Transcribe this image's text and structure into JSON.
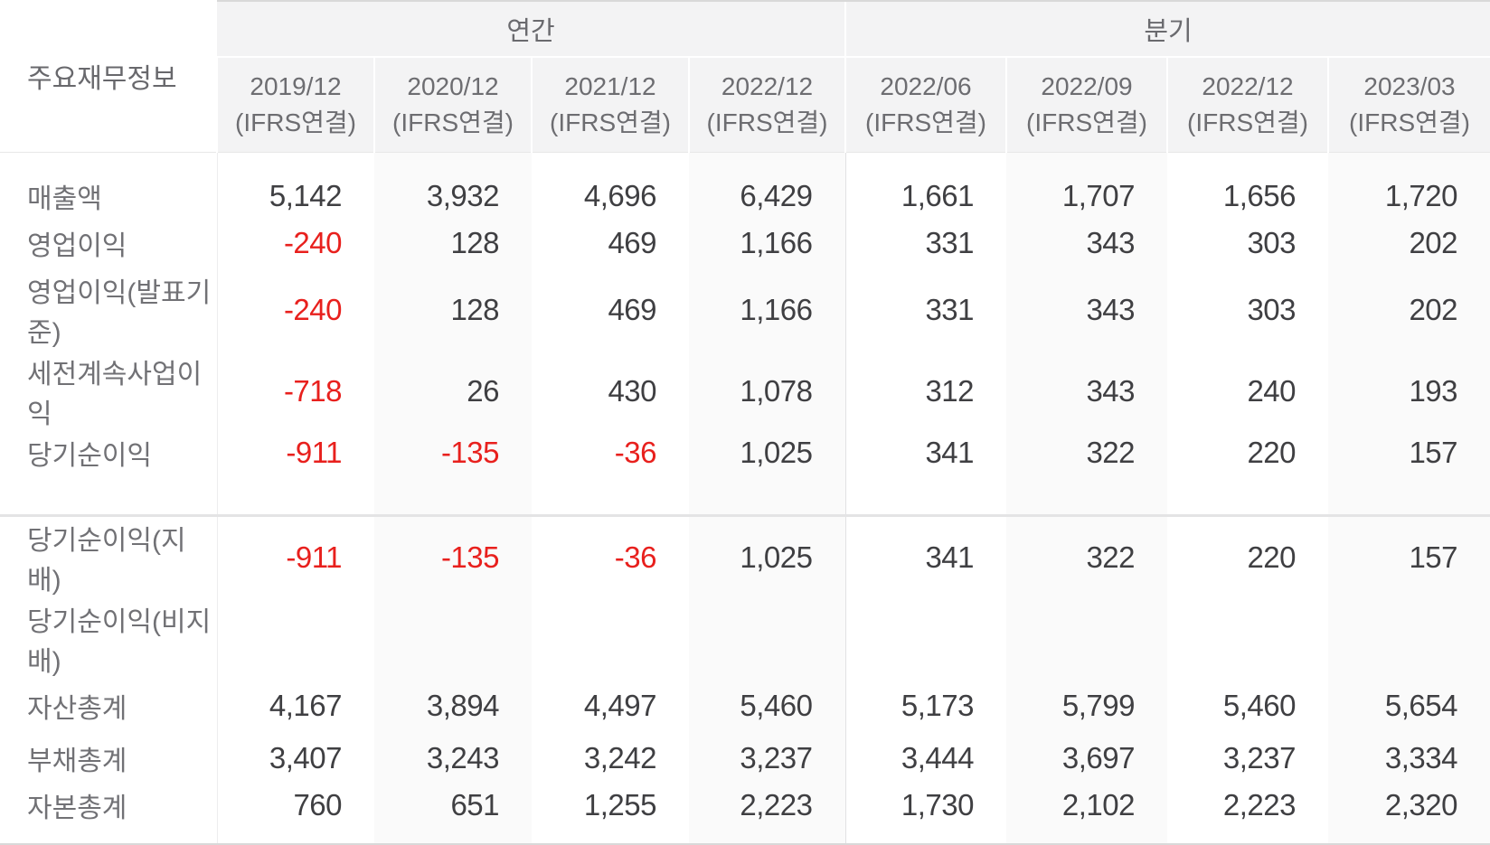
{
  "table": {
    "corner_label": "주요재무정보",
    "groups": [
      {
        "label": "연간",
        "colspan": 4
      },
      {
        "label": "분기",
        "colspan": 4
      }
    ],
    "columns": [
      {
        "period": "2019/12",
        "basis": "(IFRS연결)"
      },
      {
        "period": "2020/12",
        "basis": "(IFRS연결)"
      },
      {
        "period": "2021/12",
        "basis": "(IFRS연결)"
      },
      {
        "period": "2022/12",
        "basis": "(IFRS연결)"
      },
      {
        "period": "2022/06",
        "basis": "(IFRS연결)"
      },
      {
        "period": "2022/09",
        "basis": "(IFRS연결)"
      },
      {
        "period": "2022/12",
        "basis": "(IFRS연결)"
      },
      {
        "period": "2023/03",
        "basis": "(IFRS연결)"
      }
    ],
    "sections": [
      {
        "rows": [
          {
            "label": "매출액",
            "values": [
              "5,142",
              "3,932",
              "4,696",
              "6,429",
              "1,661",
              "1,707",
              "1,656",
              "1,720"
            ]
          },
          {
            "label": "영업이익",
            "values": [
              "-240",
              "128",
              "469",
              "1,166",
              "331",
              "343",
              "303",
              "202"
            ]
          },
          {
            "label": "영업이익(발표기준)",
            "values": [
              "-240",
              "128",
              "469",
              "1,166",
              "331",
              "343",
              "303",
              "202"
            ]
          },
          {
            "label": "세전계속사업이익",
            "values": [
              "-718",
              "26",
              "430",
              "1,078",
              "312",
              "343",
              "240",
              "193"
            ]
          },
          {
            "label": "당기순이익",
            "values": [
              "-911",
              "-135",
              "-36",
              "1,025",
              "341",
              "322",
              "220",
              "157"
            ]
          }
        ]
      },
      {
        "rows": [
          {
            "label": "당기순이익(지배)",
            "values": [
              "-911",
              "-135",
              "-36",
              "1,025",
              "341",
              "322",
              "220",
              "157"
            ]
          },
          {
            "label": "당기순이익(비지배)",
            "values": [
              "",
              "",
              "",
              "",
              "",
              "",
              "",
              ""
            ]
          },
          {
            "label": "자산총계",
            "values": [
              "4,167",
              "3,894",
              "4,497",
              "5,460",
              "5,173",
              "5,799",
              "5,460",
              "5,654"
            ]
          },
          {
            "label": "부채총계",
            "values": [
              "3,407",
              "3,243",
              "3,242",
              "3,237",
              "3,444",
              "3,697",
              "3,237",
              "3,334"
            ]
          },
          {
            "label": "자본총계",
            "values": [
              "760",
              "651",
              "1,255",
              "2,223",
              "1,730",
              "2,102",
              "2,223",
              "2,320"
            ]
          }
        ]
      }
    ],
    "colors": {
      "negative": "#e8201d",
      "value_text": "#3f3f42",
      "label_text": "#717175",
      "header_text": "#6d6d71",
      "header_bg": "#f3f3f4",
      "column_stripe": "#fafafa"
    }
  }
}
